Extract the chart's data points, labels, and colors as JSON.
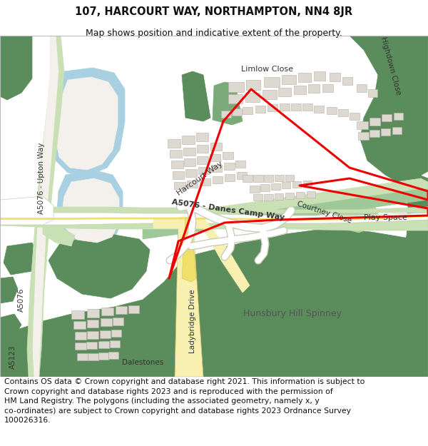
{
  "title": "107, HARCOURT WAY, NORTHAMPTON, NN4 8JR",
  "subtitle": "Map shows position and indicative extent of the property.",
  "footer": "Contains OS data © Crown copyright and database right 2021. This information is subject to Crown copyright and database rights 2023 and is reproduced with the permission of\nHM Land Registry. The polygons (including the associated geometry, namely x, y\nco-ordinates) are subject to Crown copyright and database rights 2023 Ordnance Survey\n100026316.",
  "title_fontsize": 10.5,
  "subtitle_fontsize": 9,
  "footer_fontsize": 7.8,
  "fig_width": 6.0,
  "fig_height": 6.25,
  "bg": "#f4f1ec",
  "green_dk": "#5b8c5b",
  "green_md": "#7aaa7a",
  "green_lt": "#b2d4a0",
  "green_road": "#c8e0b4",
  "green_road_dk": "#9ec898",
  "blue": "#a8d0e0",
  "road_white": "#ffffff",
  "road_edge": "#ccccbb",
  "yellow": "#f0e06a",
  "yellow_lt": "#f8f0b0",
  "bld": "#ddd8d0",
  "bld_edge": "#b8b0a8",
  "red": "#ee0000",
  "txt": "#333333",
  "white": "#ffffff"
}
